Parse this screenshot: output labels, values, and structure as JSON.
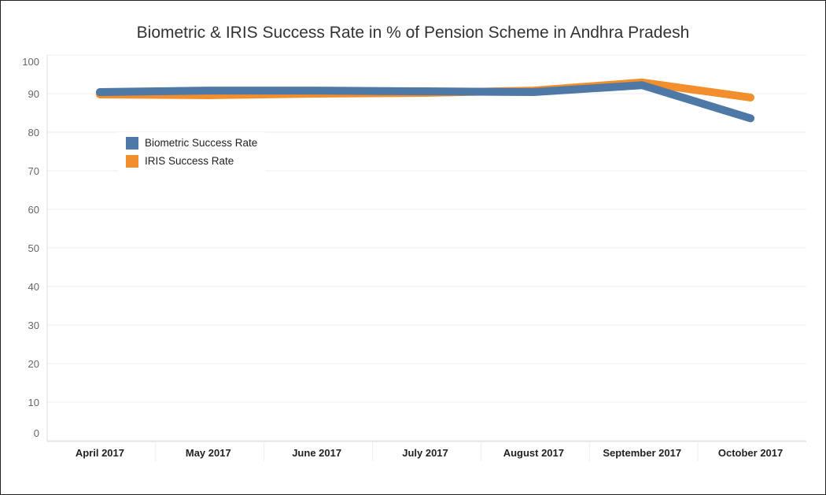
{
  "chart_data": {
    "type": "line",
    "title": "Biometric & IRIS Success Rate in % of Pension Scheme in Andhra Pradesh",
    "xlabel": "",
    "ylabel": "",
    "categories": [
      "April 2017",
      "May 2017",
      "June 2017",
      "July 2017",
      "August 2017",
      "September 2017",
      "October 2017"
    ],
    "yticks": [
      "0",
      "10",
      "20",
      "30",
      "40",
      "50",
      "60",
      "70",
      "80",
      "90",
      "100"
    ],
    "ylim": [
      0,
      100
    ],
    "grid": true,
    "legend_placement": "upper-left inside",
    "series": [
      {
        "name": "Biometric Success Rate",
        "color": "#4e79a7",
        "values": [
          90.4,
          90.8,
          90.8,
          90.6,
          90.4,
          92.2,
          83.6
        ]
      },
      {
        "name": "IRIS Success Rate",
        "color": "#f28e2b",
        "values": [
          89.8,
          89.6,
          90.0,
          90.2,
          90.8,
          92.9,
          89.0
        ]
      }
    ]
  }
}
